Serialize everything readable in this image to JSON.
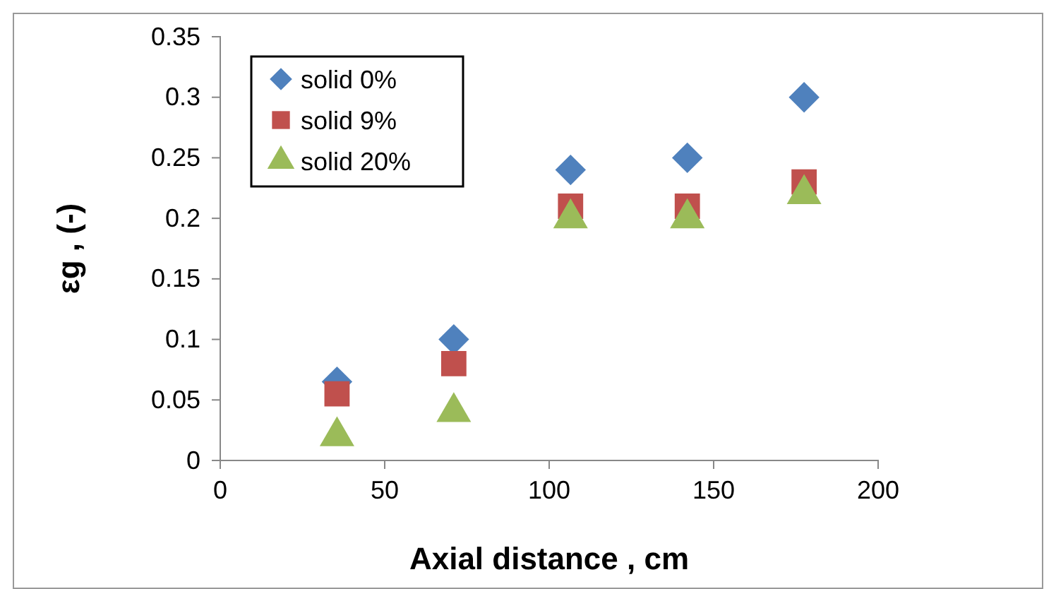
{
  "chart_data": {
    "type": "scatter",
    "xlabel": "Axial distance , cm",
    "ylabel": "εg , (-)",
    "x": [
      35.5,
      71,
      106.5,
      142,
      177.5
    ],
    "series": [
      {
        "name": "solid 0%",
        "color": "#4f81bd",
        "marker": "diamond",
        "values": [
          0.065,
          0.1,
          0.24,
          0.25,
          0.3
        ]
      },
      {
        "name": "solid 9%",
        "color": "#c0504d",
        "marker": "square",
        "values": [
          0.055,
          0.08,
          0.21,
          0.21,
          0.23
        ]
      },
      {
        "name": "solid 20%",
        "color": "#9bbb59",
        "marker": "triangle",
        "values": [
          0.02,
          0.04,
          0.2,
          0.2,
          0.22
        ]
      }
    ],
    "xlim": [
      0,
      200
    ],
    "xticks": [
      0,
      50,
      100,
      150,
      200
    ],
    "ylim": [
      0,
      0.35
    ],
    "yticks": [
      0,
      0.05,
      0.1,
      0.15,
      0.2,
      0.25,
      0.3,
      0.35
    ],
    "grid": false,
    "legend": "top left"
  }
}
